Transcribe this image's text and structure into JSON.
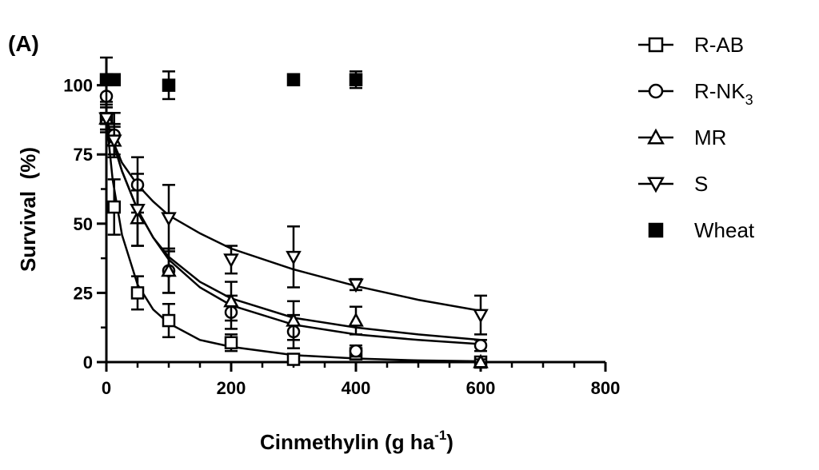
{
  "chart_data": {
    "type": "scatter",
    "panel_label": "(A)",
    "xlabel": {
      "text": "Cinmethylin (g ha",
      "sup": "-1",
      "tail": ")"
    },
    "ylabel": "Survival  (%)",
    "xlim": [
      0,
      800
    ],
    "ylim": [
      0,
      110
    ],
    "x_ticks": [
      0,
      200,
      400,
      600,
      800
    ],
    "y_ticks": [
      0,
      25,
      50,
      75,
      100
    ],
    "grid": false,
    "legend_position": "right",
    "series": [
      {
        "name": "R-AB",
        "marker": "square-open",
        "points": [
          {
            "x": 0,
            "y": 88,
            "err": 5
          },
          {
            "x": 12.5,
            "y": 56,
            "err": 10
          },
          {
            "x": 50,
            "y": 25,
            "err": 6
          },
          {
            "x": 100,
            "y": 15,
            "err": 6
          },
          {
            "x": 200,
            "y": 7,
            "err": 3
          },
          {
            "x": 300,
            "y": 1,
            "err": 1
          },
          {
            "x": 400,
            "y": 3,
            "err": 2
          },
          {
            "x": 600,
            "y": 0,
            "err": 1
          }
        ],
        "fit": [
          [
            0,
            88
          ],
          [
            10,
            66
          ],
          [
            25,
            46
          ],
          [
            50,
            28
          ],
          [
            75,
            19
          ],
          [
            100,
            14
          ],
          [
            150,
            8
          ],
          [
            200,
            5.5
          ],
          [
            300,
            2.5
          ],
          [
            400,
            1.3
          ],
          [
            500,
            0.6
          ],
          [
            600,
            0.3
          ]
        ]
      },
      {
        "name": "R-NK",
        "name_sub": "3",
        "marker": "circle-open",
        "points": [
          {
            "x": 0,
            "y": 96,
            "err": 6
          },
          {
            "x": 12.5,
            "y": 82,
            "err": 8
          },
          {
            "x": 50,
            "y": 64,
            "err": 10
          },
          {
            "x": 100,
            "y": 33,
            "err": 8
          },
          {
            "x": 200,
            "y": 18,
            "err": 6
          },
          {
            "x": 300,
            "y": 11,
            "err": 6
          },
          {
            "x": 400,
            "y": 4,
            "err": 2
          },
          {
            "x": 600,
            "y": 6,
            "err": 2
          }
        ],
        "fit": [
          [
            0,
            88
          ],
          [
            10,
            80
          ],
          [
            25,
            69
          ],
          [
            50,
            55
          ],
          [
            75,
            45
          ],
          [
            100,
            37
          ],
          [
            150,
            27
          ],
          [
            200,
            20.5
          ],
          [
            300,
            13.5
          ],
          [
            400,
            10
          ],
          [
            500,
            8
          ],
          [
            600,
            6.5
          ]
        ]
      },
      {
        "name": "MR",
        "marker": "triangle-up-open",
        "points": [
          {
            "x": 0,
            "y": 88,
            "err": 4
          },
          {
            "x": 12.5,
            "y": 80,
            "err": 6
          },
          {
            "x": 50,
            "y": 52,
            "err": 10
          },
          {
            "x": 100,
            "y": 33,
            "err": 8
          },
          {
            "x": 200,
            "y": 22,
            "err": 7
          },
          {
            "x": 300,
            "y": 15,
            "err": 7
          },
          {
            "x": 400,
            "y": 15,
            "err": 5
          },
          {
            "x": 600,
            "y": 0,
            "err": 1
          }
        ],
        "fit": [
          [
            0,
            88
          ],
          [
            10,
            80
          ],
          [
            25,
            69
          ],
          [
            50,
            55
          ],
          [
            75,
            45
          ],
          [
            100,
            38
          ],
          [
            150,
            29
          ],
          [
            200,
            23
          ],
          [
            300,
            16
          ],
          [
            400,
            12.5
          ],
          [
            500,
            10
          ],
          [
            600,
            8
          ]
        ]
      },
      {
        "name": "S",
        "marker": "triangle-down-open",
        "points": [
          {
            "x": 0,
            "y": 88,
            "err": 4
          },
          {
            "x": 12.5,
            "y": 80,
            "err": 5
          },
          {
            "x": 50,
            "y": 55,
            "err": 13
          },
          {
            "x": 100,
            "y": 52,
            "err": 12
          },
          {
            "x": 200,
            "y": 37,
            "err": 5
          },
          {
            "x": 300,
            "y": 38,
            "err": 11
          },
          {
            "x": 400,
            "y": 28,
            "err": 2
          },
          {
            "x": 600,
            "y": 17,
            "err": 7
          }
        ],
        "fit": [
          [
            0,
            88
          ],
          [
            10,
            80
          ],
          [
            25,
            72
          ],
          [
            50,
            64
          ],
          [
            75,
            58
          ],
          [
            100,
            53
          ],
          [
            150,
            46.5
          ],
          [
            200,
            41
          ],
          [
            300,
            33.5
          ],
          [
            400,
            27.5
          ],
          [
            500,
            22.5
          ],
          [
            600,
            18.5
          ]
        ]
      },
      {
        "name": "Wheat",
        "marker": "square-filled",
        "points": [
          {
            "x": 0,
            "y": 102,
            "err": 8
          },
          {
            "x": 12.5,
            "y": 102,
            "err": 0
          },
          {
            "x": 100,
            "y": 100,
            "err": 5
          },
          {
            "x": 300,
            "y": 102,
            "err": 1
          },
          {
            "x": 400,
            "y": 102,
            "err": 3
          }
        ],
        "fit": []
      }
    ]
  }
}
